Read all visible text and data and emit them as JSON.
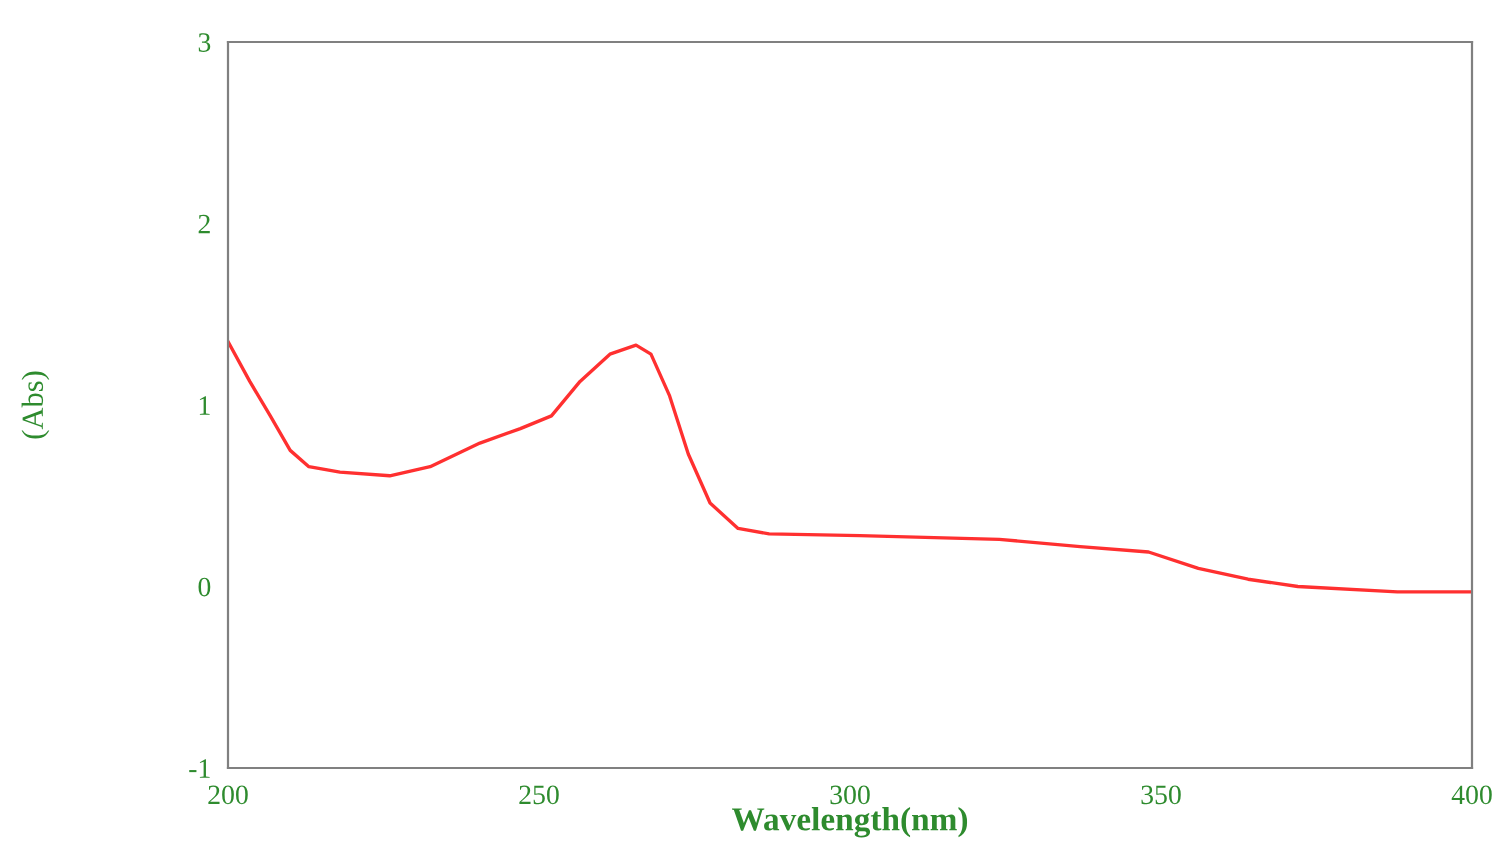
{
  "chart_data": {
    "type": "line",
    "xlabel": "Wavelength(nm)",
    "ylabel": "(Abs)",
    "xlim": [
      200,
      400
    ],
    "ylim": [
      -1,
      3
    ],
    "xticks": [
      200,
      250,
      300,
      350,
      400
    ],
    "yticks": [
      -1,
      0,
      1,
      2,
      3
    ],
    "grid": false,
    "marker": "none",
    "line_style": "solid",
    "series": [
      {
        "color": "#ff3030",
        "x": [
          200,
          203.5,
          206.8,
          210,
          213,
          218,
          226,
          232.5,
          240.5,
          247,
          252,
          256.6,
          261.4,
          265.6,
          268,
          271,
          274,
          277.5,
          282,
          287,
          301.6,
          324,
          337,
          348,
          356,
          364,
          372,
          388,
          400
        ],
        "values": [
          1.35,
          1.13,
          0.94,
          0.75,
          0.66,
          0.63,
          0.61,
          0.66,
          0.79,
          0.87,
          0.94,
          1.13,
          1.28,
          1.33,
          1.28,
          1.05,
          0.73,
          0.46,
          0.32,
          0.29,
          0.28,
          0.26,
          0.22,
          0.19,
          0.1,
          0.04,
          0.0,
          -0.03,
          -0.03
        ]
      }
    ]
  }
}
